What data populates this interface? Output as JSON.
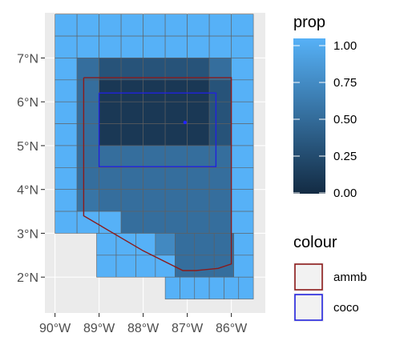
{
  "chart_data": {
    "type": "heatmap",
    "title": "",
    "xlabel": "",
    "ylabel": "",
    "x_ticks": [
      {
        "value": -90,
        "label": "90°W"
      },
      {
        "value": -89,
        "label": "89°W"
      },
      {
        "value": -88,
        "label": "88°W"
      },
      {
        "value": -87,
        "label": "87°W"
      },
      {
        "value": -86,
        "label": "86°W"
      }
    ],
    "y_ticks": [
      {
        "value": 2,
        "label": "2°N"
      },
      {
        "value": 3,
        "label": "3°N"
      },
      {
        "value": 4,
        "label": "4°N"
      },
      {
        "value": 5,
        "label": "5°N"
      },
      {
        "value": 6,
        "label": "6°N"
      },
      {
        "value": 7,
        "label": "7°N"
      }
    ],
    "xlim": [
      -90.25,
      -85.75
    ],
    "ylim": [
      1.25,
      7.75
    ],
    "cell_size_deg": 0.5,
    "grid": true,
    "panel_background": "#ebebeb",
    "cell_border_color": "#606060",
    "cell_rows": [
      {
        "lat": 7.5,
        "cells": [
          1,
          1,
          1,
          1,
          1,
          1,
          1,
          1,
          1
        ]
      },
      {
        "lat": 7.0,
        "cells": [
          1,
          1,
          1,
          1,
          1,
          1,
          1,
          1,
          1
        ]
      },
      {
        "lat": 6.5,
        "cells": [
          1,
          0.5,
          0.3,
          0.3,
          0.3,
          0.3,
          0.3,
          0.5,
          1
        ]
      },
      {
        "lat": 6.0,
        "cells": [
          1,
          0.5,
          0.1,
          0.1,
          0.1,
          0.1,
          0.1,
          0.3,
          1
        ]
      },
      {
        "lat": 5.5,
        "cells": [
          1,
          0.5,
          0.1,
          0.1,
          0.1,
          0.1,
          0.1,
          0.3,
          1
        ]
      },
      {
        "lat": 5.0,
        "cells": [
          1,
          0.5,
          0.1,
          0.1,
          0.1,
          0.1,
          0.1,
          0.3,
          1
        ]
      },
      {
        "lat": 4.5,
        "cells": [
          1,
          0.5,
          0.5,
          0.5,
          0.5,
          0.5,
          0.5,
          0.5,
          1
        ]
      },
      {
        "lat": 4.0,
        "cells": [
          1,
          0.5,
          0.5,
          0.5,
          0.5,
          0.5,
          0.5,
          0.5,
          1
        ]
      },
      {
        "lat": 3.5,
        "cells": [
          1,
          0.55,
          0.5,
          0.5,
          0.5,
          0.5,
          0.5,
          0.5,
          1
        ]
      },
      {
        "lat": 3.0,
        "cells": [
          1,
          1,
          1,
          0.5,
          0.5,
          0.5,
          0.5,
          0.5,
          1
        ]
      },
      {
        "lat": 2.5,
        "cells": [
          null,
          1,
          1,
          1,
          0.7,
          0.5,
          0.5,
          0.5,
          1
        ]
      },
      {
        "lat": 2.0,
        "cells": [
          null,
          1,
          1,
          1,
          1,
          0.5,
          0.5,
          0.5,
          1
        ]
      },
      {
        "lat": 1.5,
        "cells": [
          null,
          null,
          null,
          1,
          1,
          1,
          1,
          1,
          1
        ]
      }
    ],
    "row_x_extents": [
      {
        "lat": 7.5,
        "xmin": -90.0,
        "xmax": -85.5
      },
      {
        "lat": 7.0,
        "xmin": -90.0,
        "xmax": -85.5
      },
      {
        "lat": 6.5,
        "xmin": -90.0,
        "xmax": -85.5
      },
      {
        "lat": 6.0,
        "xmin": -90.0,
        "xmax": -85.5
      },
      {
        "lat": 5.5,
        "xmin": -90.0,
        "xmax": -85.5
      },
      {
        "lat": 5.0,
        "xmin": -90.0,
        "xmax": -85.5
      },
      {
        "lat": 4.5,
        "xmin": -90.0,
        "xmax": -85.5
      },
      {
        "lat": 4.0,
        "xmin": -90.0,
        "xmax": -85.5
      },
      {
        "lat": 3.5,
        "xmin": -90.0,
        "xmax": -85.5
      },
      {
        "lat": 3.0,
        "xmin": -90.0,
        "xmax": -85.5
      },
      {
        "lat": 2.5,
        "xmin": -89.5,
        "xmax": -85.5
      },
      {
        "lat": 2.0,
        "xmin": -89.5,
        "xmax": -85.5
      },
      {
        "lat": 1.5,
        "xmin": -88.5,
        "xmax": -85.5
      }
    ],
    "outlines": [
      {
        "name": "ammb",
        "color": "#8b1a1a",
        "polygon": [
          [
            -89.35,
            6.55
          ],
          [
            -86.0,
            6.55
          ],
          [
            -86.0,
            2.3
          ],
          [
            -86.3,
            2.2
          ],
          [
            -86.8,
            2.15
          ],
          [
            -87.1,
            2.15
          ],
          [
            -88.0,
            2.6
          ],
          [
            -89.35,
            3.4
          ],
          [
            -89.35,
            6.55
          ]
        ]
      },
      {
        "name": "coco",
        "color": "#2222dd",
        "polygon": [
          [
            -89.0,
            6.2
          ],
          [
            -86.35,
            6.2
          ],
          [
            -86.35,
            4.52
          ],
          [
            -89.0,
            4.52
          ],
          [
            -89.0,
            6.2
          ]
        ]
      }
    ],
    "points": [
      {
        "x": -87.05,
        "y": 5.53,
        "color": "#2222ff"
      }
    ],
    "legend": {
      "position": "right",
      "fill": {
        "title": "prop",
        "ticks": [
          {
            "value": 1.0,
            "label": "1.00"
          },
          {
            "value": 0.75,
            "label": "0.75"
          },
          {
            "value": 0.5,
            "label": "0.50"
          },
          {
            "value": 0.25,
            "label": "0.25"
          },
          {
            "value": 0.0,
            "label": "0.00"
          }
        ],
        "low_color": "#132b43",
        "high_color": "#56b1f7"
      },
      "colour": {
        "title": "colour",
        "entries": [
          {
            "label": "ammb",
            "color": "#8b1a1a"
          },
          {
            "label": "coco",
            "color": "#2222dd"
          }
        ]
      }
    }
  }
}
